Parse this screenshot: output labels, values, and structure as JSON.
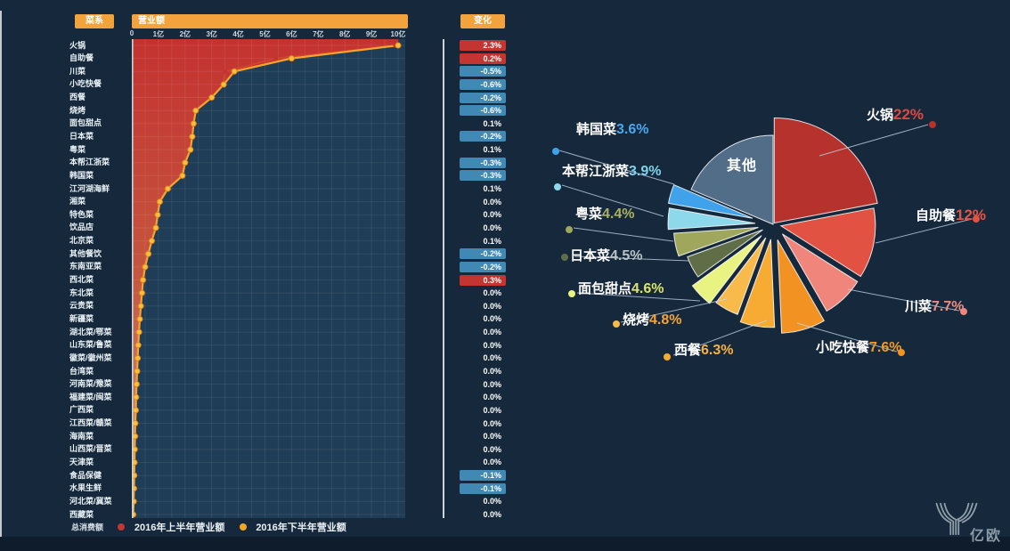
{
  "ui": {
    "category_header": "菜系",
    "revenue_header": "营业额",
    "change_header": "变化",
    "total_label": "总消费额",
    "logo_text": "亿欧",
    "colors": {
      "background": "#16293c",
      "plot_background": "#1f3d56",
      "accent_orange": "#f2a33c",
      "positive_badge": "#c23531",
      "negative_badge": "#4189b5",
      "line_first_half": "#c23531",
      "line_second_half": "#f5a623"
    }
  },
  "chart_data": [
    {
      "type": "line",
      "title": "营业额",
      "unit": "亿",
      "value_axis": {
        "ticks": [
          "0",
          "1亿",
          "2亿",
          "3亿",
          "4亿",
          "5亿",
          "6亿",
          "7亿",
          "8亿",
          "9亿",
          "10亿"
        ],
        "lim": [
          0,
          10
        ]
      },
      "grid": true,
      "legend_position": "bottom",
      "categories": [
        "火锅",
        "自助餐",
        "川菜",
        "小吃快餐",
        "西餐",
        "烧烤",
        "面包甜点",
        "日本菜",
        "粤菜",
        "本帮江浙菜",
        "韩国菜",
        "江河湖海鲜",
        "湘菜",
        "特色菜",
        "饮品店",
        "北京菜",
        "其他餐饮",
        "东南亚菜",
        "西北菜",
        "东北菜",
        "云贵菜",
        "新疆菜",
        "湖北菜/鄂菜",
        "山东菜/鲁菜",
        "徽菜/徽州菜",
        "台湾菜",
        "河南菜/豫菜",
        "福建菜/闽菜",
        "广西菜",
        "江西菜/赣菜",
        "海南菜",
        "山西菜/晋菜",
        "天津菜",
        "食品保健",
        "水果生鲜",
        "河北菜/冀菜",
        "西藏菜"
      ],
      "series": [
        {
          "name": "2016年上半年营业额",
          "color": "#c23531",
          "values": [
            9.9,
            5.4,
            3.5,
            3.42,
            2.95,
            2.42,
            2.3,
            2.25,
            2.18,
            2.02,
            1.88,
            1.36,
            1.06,
            0.96,
            0.91,
            0.74,
            0.63,
            0.51,
            0.4,
            0.38,
            0.34,
            0.3,
            0.27,
            0.24,
            0.22,
            0.2,
            0.18,
            0.16,
            0.15,
            0.13,
            0.12,
            0.11,
            0.1,
            0.09,
            0.08,
            0.07,
            0.05
          ]
        },
        {
          "name": "2016年下半年营业额",
          "color": "#f5a623",
          "values": [
            10.0,
            6.0,
            3.85,
            3.45,
            3.0,
            2.4,
            2.32,
            2.27,
            2.2,
            2.0,
            1.9,
            1.35,
            1.05,
            0.97,
            0.9,
            0.75,
            0.62,
            0.5,
            0.42,
            0.38,
            0.34,
            0.3,
            0.27,
            0.24,
            0.22,
            0.2,
            0.18,
            0.16,
            0.15,
            0.13,
            0.12,
            0.11,
            0.1,
            0.09,
            0.08,
            0.07,
            0.05
          ]
        }
      ],
      "changes": [
        {
          "text": "2.3%",
          "badge": "red"
        },
        {
          "text": "0.2%",
          "badge": "red"
        },
        {
          "text": "-0.5%",
          "badge": "blue"
        },
        {
          "text": "-0.6%",
          "badge": "blue"
        },
        {
          "text": "-0.2%",
          "badge": "blue"
        },
        {
          "text": "-0.6%",
          "badge": "blue"
        },
        {
          "text": "0.1%",
          "badge": "none"
        },
        {
          "text": "-0.2%",
          "badge": "blue"
        },
        {
          "text": "0.1%",
          "badge": "none"
        },
        {
          "text": "-0.3%",
          "badge": "blue"
        },
        {
          "text": "-0.3%",
          "badge": "blue"
        },
        {
          "text": "0.1%",
          "badge": "none"
        },
        {
          "text": "0.0%",
          "badge": "none"
        },
        {
          "text": "0.0%",
          "badge": "none"
        },
        {
          "text": "0.0%",
          "badge": "none"
        },
        {
          "text": "0.1%",
          "badge": "none"
        },
        {
          "text": "-0.2%",
          "badge": "blue"
        },
        {
          "text": "-0.2%",
          "badge": "blue"
        },
        {
          "text": "0.3%",
          "badge": "red"
        },
        {
          "text": "0.0%",
          "badge": "none"
        },
        {
          "text": "0.0%",
          "badge": "none"
        },
        {
          "text": "0.0%",
          "badge": "none"
        },
        {
          "text": "0.0%",
          "badge": "none"
        },
        {
          "text": "0.0%",
          "badge": "none"
        },
        {
          "text": "0.0%",
          "badge": "none"
        },
        {
          "text": "0.0%",
          "badge": "none"
        },
        {
          "text": "0.0%",
          "badge": "none"
        },
        {
          "text": "0.0%",
          "badge": "none"
        },
        {
          "text": "0.0%",
          "badge": "none"
        },
        {
          "text": "0.0%",
          "badge": "none"
        },
        {
          "text": "0.0%",
          "badge": "none"
        },
        {
          "text": "0.0%",
          "badge": "none"
        },
        {
          "text": "0.0%",
          "badge": "none"
        },
        {
          "text": "-0.1%",
          "badge": "blue"
        },
        {
          "text": "-0.1%",
          "badge": "blue"
        },
        {
          "text": "0.0%",
          "badge": "none"
        },
        {
          "text": "0.0%",
          "badge": "none"
        }
      ]
    },
    {
      "type": "pie",
      "legend_position": "none",
      "slices": [
        {
          "name": "火锅",
          "pct": "22%",
          "value": 22,
          "color": "#b5322d",
          "label_color": "#d94a40"
        },
        {
          "name": "自助餐",
          "pct": "12%",
          "value": 12,
          "color": "#e15243",
          "label_color": "#e25647"
        },
        {
          "name": "川菜",
          "pct": "7.7%",
          "value": 7.7,
          "color": "#f0867b",
          "label_color": "#f18d80"
        },
        {
          "name": "小吃快餐",
          "pct": "7.6%",
          "value": 7.6,
          "color": "#f29222",
          "label_color": "#f29a24"
        },
        {
          "name": "西餐",
          "pct": "6.3%",
          "value": 6.3,
          "color": "#f7ab33",
          "label_color": "#f6b13f"
        },
        {
          "name": "烧烤",
          "pct": "4.8%",
          "value": 4.8,
          "color": "#f8bb4b",
          "label_color": "#f5a43b"
        },
        {
          "name": "面包甜点",
          "pct": "4.6%",
          "value": 4.6,
          "color": "#e9f381",
          "label_color": "#dce566"
        },
        {
          "name": "日本菜",
          "pct": "4.5%",
          "value": 4.5,
          "color": "#5f6e47",
          "label_color": "#b9c4c6"
        },
        {
          "name": "粤菜",
          "pct": "4.4%",
          "value": 4.4,
          "color": "#9fa75c",
          "label_color": "#aab25f"
        },
        {
          "name": "本帮江浙菜",
          "pct": "3.9%",
          "value": 3.9,
          "color": "#8ed8ec",
          "label_color": "#7fd2ea"
        },
        {
          "name": "韩国菜",
          "pct": "3.6%",
          "value": 3.6,
          "color": "#3fa2ea",
          "label_color": "#4aa8ec"
        },
        {
          "name": "其他",
          "pct": "",
          "value": 18.6,
          "color": "#516d88",
          "label_color": "#ffffff"
        }
      ]
    }
  ]
}
